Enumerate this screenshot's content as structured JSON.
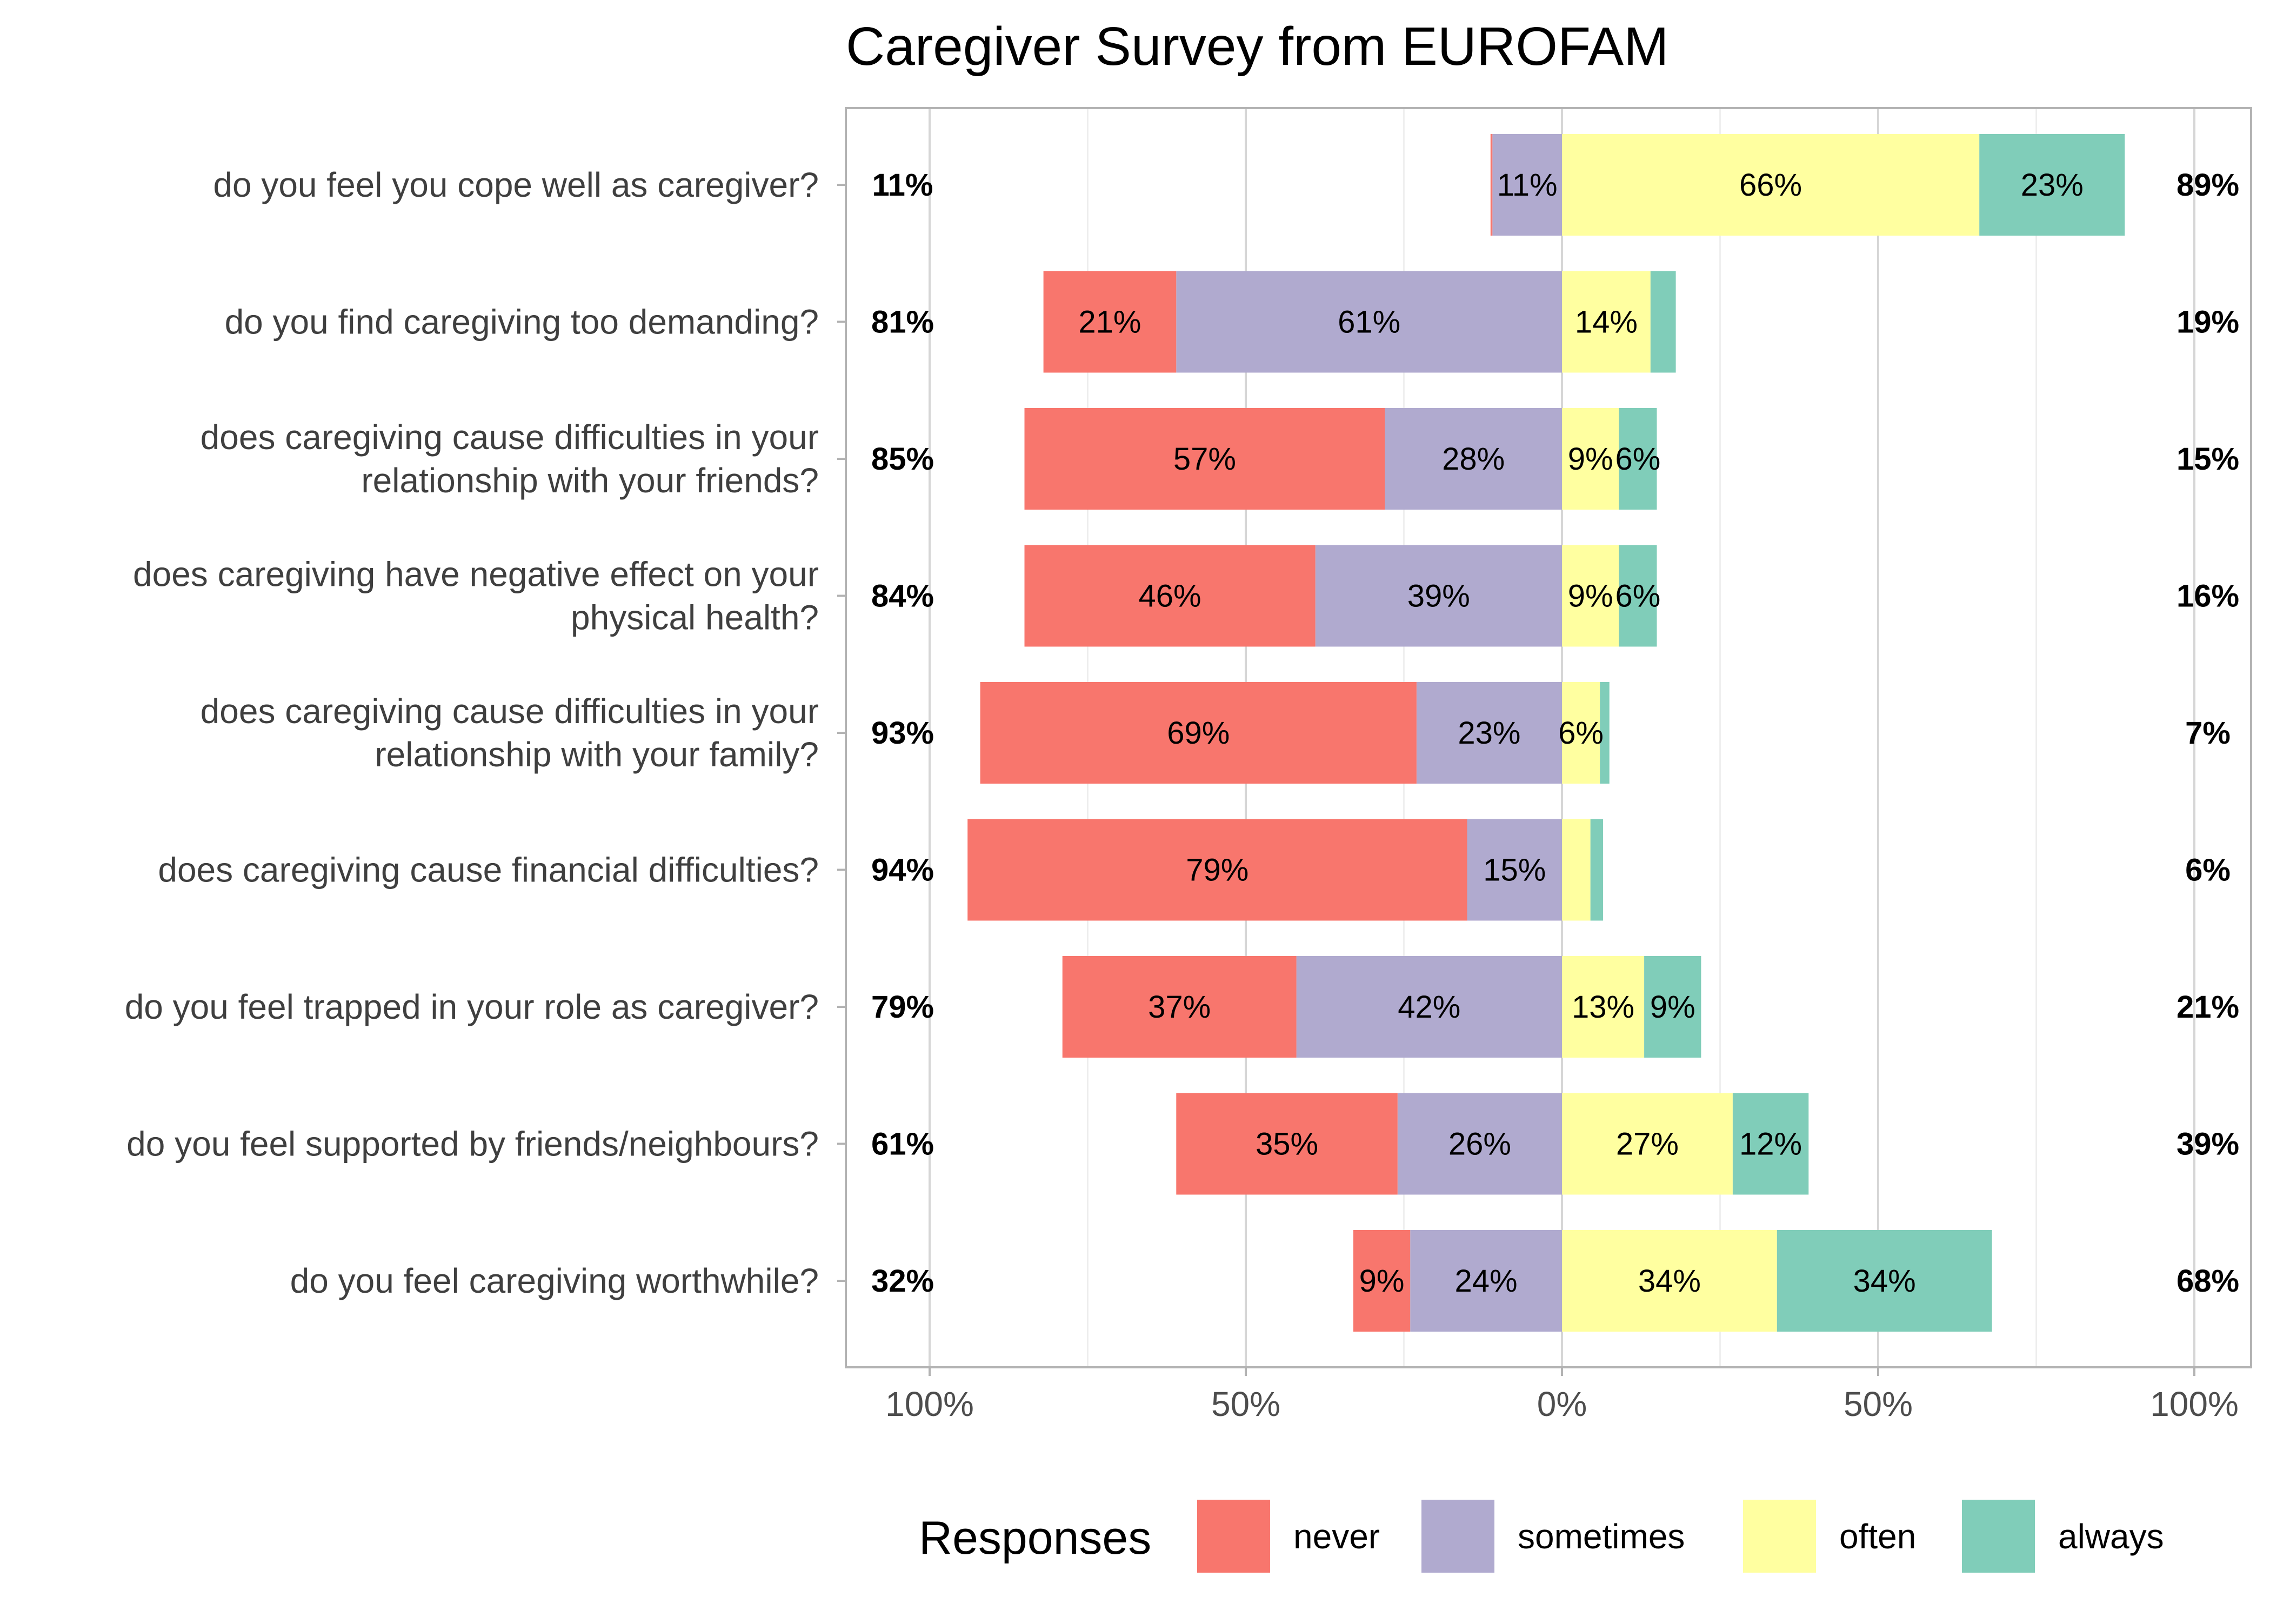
{
  "chart_data": {
    "type": "bar",
    "orientation": "horizontal-diverging",
    "title": "Caregiver Survey from EUROFAM",
    "xlabel": "",
    "ylabel": "",
    "xlim": [
      -100,
      100
    ],
    "x_ticks": [
      -100,
      -50,
      0,
      50,
      100
    ],
    "x_tick_labels": [
      "100%",
      "50%",
      "0%",
      "50%",
      "100%"
    ],
    "grid": true,
    "legend": {
      "title": "Responses",
      "placement": "bottom"
    },
    "categories": [
      [
        "do you feel you cope well as caregiver?"
      ],
      [
        "do you find caregiving too demanding?"
      ],
      [
        "does caregiving cause difficulties in your",
        "relationship with your friends?"
      ],
      [
        "does caregiving have negative effect on your",
        "physical health?"
      ],
      [
        "does caregiving cause difficulties in your",
        "relationship with your family?"
      ],
      [
        "does caregiving cause financial difficulties?"
      ],
      [
        "do you feel trapped in your role as caregiver?"
      ],
      [
        "do you feel supported by friends/neighbours?"
      ],
      [
        "do you feel caregiving worthwhile?"
      ]
    ],
    "series": [
      {
        "name": "never",
        "color": "#F8766D",
        "side": "negative",
        "values": [
          0.3,
          21,
          57,
          46,
          69,
          79,
          37,
          35,
          9
        ],
        "labels": [
          "",
          "21%",
          "57%",
          "46%",
          "69%",
          "79%",
          "37%",
          "35%",
          "9%"
        ]
      },
      {
        "name": "sometimes",
        "color": "#B0AACF",
        "side": "negative",
        "values": [
          11,
          61,
          28,
          39,
          23,
          15,
          42,
          26,
          24
        ],
        "labels": [
          "11%",
          "61%",
          "28%",
          "39%",
          "23%",
          "15%",
          "42%",
          "26%",
          "24%"
        ]
      },
      {
        "name": "often",
        "color": "#FFFFA0",
        "side": "positive",
        "values": [
          66,
          14,
          9,
          9,
          6,
          4.5,
          13,
          27,
          34
        ],
        "labels": [
          "66%",
          "14%",
          "9%",
          "9%",
          "6%",
          "",
          "13%",
          "27%",
          "34%"
        ]
      },
      {
        "name": "always",
        "color": "#80CDB9",
        "side": "positive",
        "values": [
          23,
          4,
          6,
          6,
          1.5,
          2,
          9,
          12,
          34
        ],
        "labels": [
          "23%",
          "",
          "6%",
          "6%",
          "",
          "",
          "9%",
          "12%",
          "34%"
        ]
      }
    ],
    "left_totals": [
      "11%",
      "81%",
      "85%",
      "84%",
      "93%",
      "94%",
      "79%",
      "61%",
      "32%"
    ],
    "right_totals": [
      "89%",
      "19%",
      "15%",
      "16%",
      "7%",
      "6%",
      "21%",
      "39%",
      "68%"
    ]
  }
}
